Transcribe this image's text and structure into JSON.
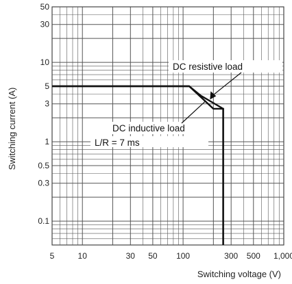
{
  "chart_data": {
    "type": "line",
    "xlabel": "Switching voltage (V)",
    "ylabel": "Switching current (A)",
    "x_scale": "log",
    "y_scale": "log",
    "xlim": [
      5,
      1000
    ],
    "ylim": [
      0.05,
      50
    ],
    "grid": true,
    "x_ticks": [
      {
        "value": 5,
        "label": "5"
      },
      {
        "value": 10,
        "label": "10"
      },
      {
        "value": 30,
        "label": "30"
      },
      {
        "value": 50,
        "label": "50"
      },
      {
        "value": 100,
        "label": "100"
      },
      {
        "value": 300,
        "label": "300"
      },
      {
        "value": 500,
        "label": "500"
      },
      {
        "value": 1000,
        "label": "1,000"
      }
    ],
    "y_ticks": [
      {
        "value": 0.1,
        "label": "0.1"
      },
      {
        "value": 0.3,
        "label": "0.3"
      },
      {
        "value": 0.5,
        "label": "0.5"
      },
      {
        "value": 1,
        "label": "1"
      },
      {
        "value": 3,
        "label": "3"
      },
      {
        "value": 5,
        "label": "5"
      },
      {
        "value": 10,
        "label": "10"
      },
      {
        "value": 30,
        "label": "30"
      },
      {
        "value": 50,
        "label": "50"
      }
    ],
    "series": [
      {
        "name": "DC resistive load",
        "points": [
          [
            5,
            5
          ],
          [
            115,
            5
          ],
          [
            150,
            3.8
          ],
          [
            250,
            2.6
          ],
          [
            250,
            0.05
          ]
        ],
        "color": "#111111"
      },
      {
        "name": "DC inductive load L/R = 7 ms",
        "points": [
          [
            5,
            5
          ],
          [
            115,
            5
          ],
          [
            200,
            2.6
          ],
          [
            250,
            2.6
          ],
          [
            250,
            0.05
          ]
        ],
        "color": "#111111"
      }
    ],
    "annotations": [
      {
        "text": "DC resistive load",
        "points_to": [
          185,
          3.4
        ]
      },
      {
        "text": "DC inductive load",
        "points_to": [
          165,
          3.2
        ]
      },
      {
        "text": "L/R = 7 ms"
      }
    ]
  }
}
